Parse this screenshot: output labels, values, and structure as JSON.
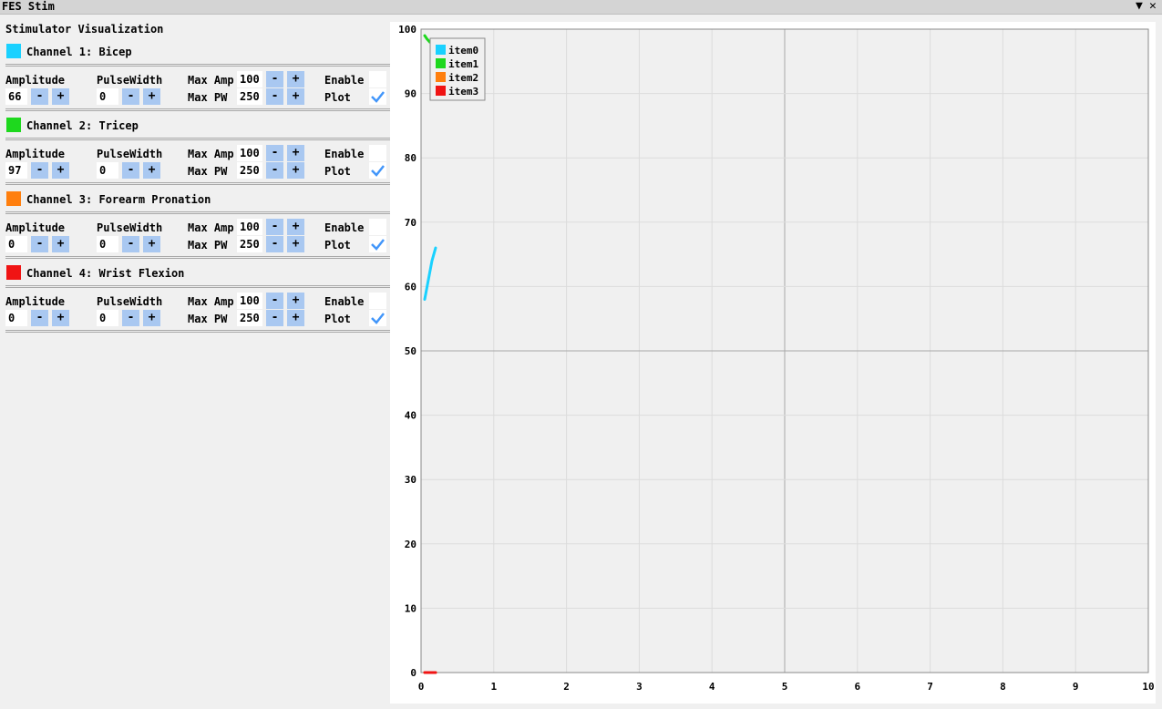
{
  "window": {
    "title": "FES Stim",
    "collapse_icon": "triangle-down-icon",
    "close_icon": "close-icon"
  },
  "panel": {
    "title": "Stimulator Visualization",
    "labels": {
      "amplitude": "Amplitude",
      "pulse_width": "PulseWidth",
      "max_amp": "Max Amp",
      "max_pw": "Max PW",
      "enable": "Enable",
      "plot": "Plot",
      "minus": "-",
      "plus": "+"
    },
    "channels": [
      {
        "name": "Channel 1: Bicep",
        "color": "#1ad1ff",
        "amplitude": "66",
        "pulse_width": "0",
        "max_amp": "100",
        "max_pw": "250",
        "enable": false,
        "plot": true
      },
      {
        "name": "Channel 2: Tricep",
        "color": "#1ed81e",
        "amplitude": "97",
        "pulse_width": "0",
        "max_amp": "100",
        "max_pw": "250",
        "enable": false,
        "plot": true
      },
      {
        "name": "Channel 3: Forearm Pronation",
        "color": "#ff7f0e",
        "amplitude": "0",
        "pulse_width": "0",
        "max_amp": "100",
        "max_pw": "250",
        "enable": false,
        "plot": true
      },
      {
        "name": "Channel 4: Wrist Flexion",
        "color": "#f01414",
        "amplitude": "0",
        "pulse_width": "0",
        "max_amp": "100",
        "max_pw": "250",
        "enable": false,
        "plot": true
      }
    ]
  },
  "chart_data": {
    "type": "line",
    "title": "",
    "xlabel": "",
    "ylabel": "",
    "xlim": [
      0,
      10
    ],
    "ylim": [
      0,
      100
    ],
    "x_ticks": [
      "0",
      "1",
      "2",
      "3",
      "4",
      "5",
      "6",
      "7",
      "8",
      "9",
      "10"
    ],
    "y_ticks": [
      "0",
      "10",
      "20",
      "30",
      "40",
      "50",
      "60",
      "70",
      "80",
      "90",
      "100"
    ],
    "grid": true,
    "legend": "top-left",
    "series": [
      {
        "name": "item0",
        "color": "#1ad1ff",
        "x": [
          0.05,
          0.1,
          0.15,
          0.2
        ],
        "y": [
          58,
          61,
          64,
          66
        ]
      },
      {
        "name": "item1",
        "color": "#1ed81e",
        "x": [
          0.05,
          0.08,
          0.12
        ],
        "y": [
          99,
          98.5,
          98
        ]
      },
      {
        "name": "item2",
        "color": "#ff7f0e",
        "x": [
          0.05,
          0.2
        ],
        "y": [
          0,
          0
        ]
      },
      {
        "name": "item3",
        "color": "#f01414",
        "x": [
          0.05,
          0.2
        ],
        "y": [
          0,
          0
        ]
      }
    ]
  }
}
